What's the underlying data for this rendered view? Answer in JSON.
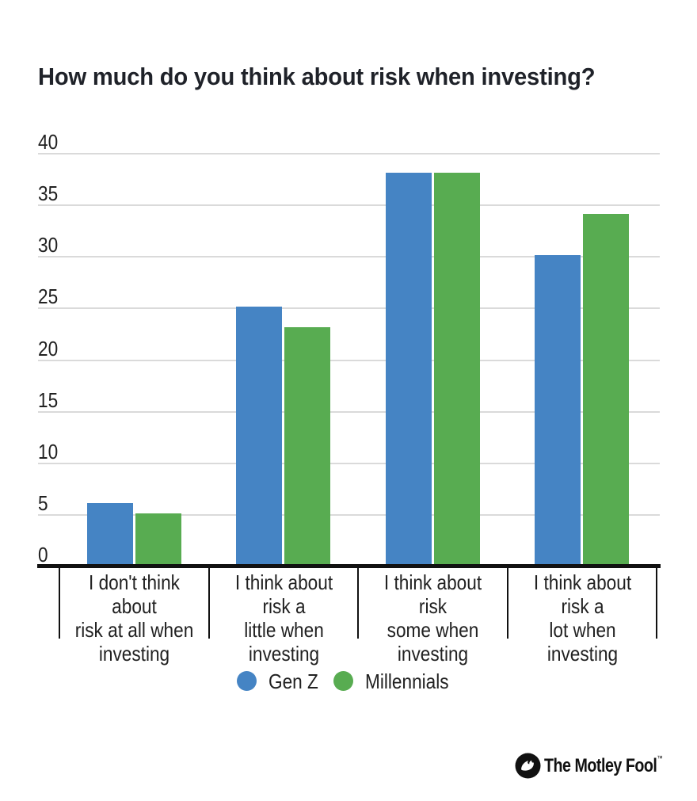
{
  "chart_data": {
    "type": "bar",
    "title": "How much do you think about risk when investing?",
    "categories": [
      "I don't think about\nrisk at all when\ninvesting",
      "I think about risk a\nlittle when investing",
      "I think about risk\nsome when\ninvesting",
      "I think about risk a\nlot when investing"
    ],
    "series": [
      {
        "name": "Gen Z",
        "color": "#4584C4",
        "values": [
          6,
          25,
          38,
          30
        ]
      },
      {
        "name": "Millennials",
        "color": "#58AC51",
        "values": [
          5,
          23,
          38,
          34
        ]
      }
    ],
    "xlabel": "",
    "ylabel": "",
    "ylim": [
      0,
      40
    ],
    "yticks": [
      0,
      5,
      10,
      15,
      20,
      25,
      30,
      35,
      40
    ],
    "grid": true,
    "legend_position": "bottom",
    "colors": {
      "gridline": "#dadada",
      "axis": "#111111",
      "text": "#212121",
      "title": "#1f2229"
    }
  },
  "branding": {
    "logo_text": "The Motley Fool",
    "trademark": "™"
  }
}
